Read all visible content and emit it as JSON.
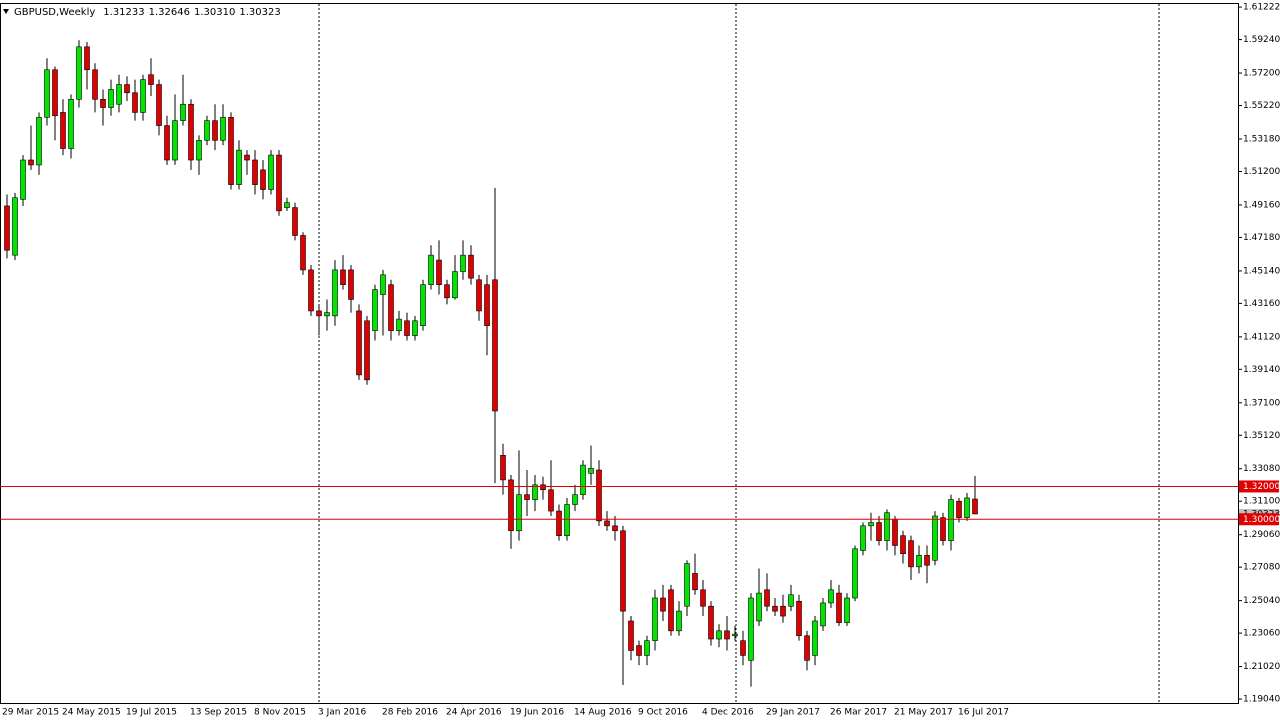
{
  "chart_data": {
    "type": "candlestick",
    "title": "GBPUSD,Weekly",
    "header_values": [
      "1.31233",
      "1.32646",
      "1.30310",
      "1.30323"
    ],
    "up_color": "#00e600",
    "down_color": "#e00000",
    "ylim": [
      1.188,
      1.6141
    ],
    "yticks": [
      {
        "value": 1.61222,
        "label": "1.61222"
      },
      {
        "value": 1.5924,
        "label": "1.59240"
      },
      {
        "value": 1.572,
        "label": "1.57200"
      },
      {
        "value": 1.5522,
        "label": "1.55220"
      },
      {
        "value": 1.5318,
        "label": "1.53180"
      },
      {
        "value": 1.512,
        "label": "1.51200"
      },
      {
        "value": 1.4916,
        "label": "1.49160"
      },
      {
        "value": 1.4718,
        "label": "1.47180"
      },
      {
        "value": 1.4514,
        "label": "1.45140"
      },
      {
        "value": 1.4316,
        "label": "1.43160"
      },
      {
        "value": 1.4112,
        "label": "1.41120"
      },
      {
        "value": 1.3914,
        "label": "1.39140"
      },
      {
        "value": 1.371,
        "label": "1.37100"
      },
      {
        "value": 1.3512,
        "label": "1.35120"
      },
      {
        "value": 1.3308,
        "label": "1.33080"
      },
      {
        "value": 1.311,
        "label": "1.31100"
      },
      {
        "value": 1.2906,
        "label": "1.29060"
      },
      {
        "value": 1.2708,
        "label": "1.27080"
      },
      {
        "value": 1.2504,
        "label": "1.25040"
      },
      {
        "value": 1.2306,
        "label": "1.23060"
      },
      {
        "value": 1.2102,
        "label": "1.21020"
      },
      {
        "value": 1.1904,
        "label": "1.19040"
      }
    ],
    "hlines": [
      {
        "value": 1.32,
        "label": "1.32000"
      },
      {
        "value": 1.3,
        "label": "1.30000"
      }
    ],
    "hline_color": "#e00000",
    "last_price": {
      "value": 1.30323,
      "label": "1.30323"
    },
    "categories": [
      "29 Mar 2015",
      null,
      null,
      null,
      null,
      null,
      null,
      "24 May 2015",
      null,
      null,
      null,
      null,
      null,
      null,
      null,
      "19 Jul 2015",
      null,
      null,
      null,
      null,
      null,
      null,
      null,
      "13 Sep 2015",
      null,
      null,
      null,
      null,
      null,
      null,
      null,
      "8 Nov 2015",
      null,
      null,
      null,
      null,
      null,
      null,
      null,
      "3 Jan 2016",
      null,
      null,
      null,
      null,
      null,
      null,
      null,
      "28 Feb 2016",
      null,
      null,
      null,
      null,
      null,
      null,
      null,
      "24 Apr 2016",
      null,
      null,
      null,
      null,
      null,
      null,
      null,
      "19 Jun 2016",
      null,
      null,
      null,
      null,
      null,
      null,
      null,
      "14 Aug 2016",
      null,
      null,
      null,
      null,
      null,
      null,
      null,
      "9 Oct 2016",
      null,
      null,
      null,
      null,
      null,
      null,
      null,
      "4 Dec 2016",
      null,
      null,
      null,
      null,
      null,
      null,
      null,
      "29 Jan 2017",
      null,
      null,
      null,
      null,
      null,
      null,
      null,
      "26 Mar 2017",
      null,
      null,
      null,
      null,
      null,
      null,
      null,
      "21 May 2017",
      null,
      null,
      null,
      null,
      null,
      null,
      null,
      "16 Jul 2017",
      null,
      null
    ],
    "candles": [
      [
        1.491,
        1.498,
        1.459,
        1.464
      ],
      [
        1.461,
        1.499,
        1.458,
        1.496
      ],
      [
        1.495,
        1.522,
        1.491,
        1.519
      ],
      [
        1.519,
        1.54,
        1.513,
        1.516
      ],
      [
        1.516,
        1.548,
        1.51,
        1.545
      ],
      [
        1.545,
        1.581,
        1.54,
        1.574
      ],
      [
        1.574,
        1.576,
        1.531,
        1.546
      ],
      [
        1.548,
        1.556,
        1.522,
        1.526
      ],
      [
        1.526,
        1.559,
        1.52,
        1.556
      ],
      [
        1.556,
        1.592,
        1.551,
        1.588
      ],
      [
        1.588,
        1.591,
        1.562,
        1.574
      ],
      [
        1.574,
        1.578,
        1.548,
        1.556
      ],
      [
        1.556,
        1.562,
        1.54,
        1.551
      ],
      [
        1.551,
        1.568,
        1.546,
        1.562
      ],
      [
        1.553,
        1.571,
        1.548,
        1.565
      ],
      [
        1.565,
        1.57,
        1.555,
        1.56
      ],
      [
        1.56,
        1.568,
        1.543,
        1.548
      ],
      [
        1.548,
        1.571,
        1.543,
        1.568
      ],
      [
        1.571,
        1.581,
        1.558,
        1.565
      ],
      [
        1.565,
        1.568,
        1.534,
        1.54
      ],
      [
        1.54,
        1.546,
        1.516,
        1.519
      ],
      [
        1.519,
        1.559,
        1.516,
        1.543
      ],
      [
        1.543,
        1.571,
        1.54,
        1.553
      ],
      [
        1.553,
        1.556,
        1.513,
        1.519
      ],
      [
        1.519,
        1.534,
        1.51,
        1.531
      ],
      [
        1.531,
        1.546,
        1.528,
        1.543
      ],
      [
        1.543,
        1.553,
        1.525,
        1.531
      ],
      [
        1.531,
        1.553,
        1.528,
        1.545
      ],
      [
        1.545,
        1.548,
        1.501,
        1.504
      ],
      [
        1.504,
        1.531,
        1.501,
        1.525
      ],
      [
        1.522,
        1.525,
        1.51,
        1.519
      ],
      [
        1.519,
        1.525,
        1.498,
        1.504
      ],
      [
        1.513,
        1.519,
        1.495,
        1.501
      ],
      [
        1.501,
        1.525,
        1.498,
        1.522
      ],
      [
        1.522,
        1.525,
        1.485,
        1.488
      ],
      [
        1.49,
        1.496,
        1.488,
        1.493
      ],
      [
        1.49,
        1.493,
        1.47,
        1.473
      ],
      [
        1.473,
        1.475,
        1.449,
        1.452
      ],
      [
        1.452,
        1.455,
        1.424,
        1.427
      ],
      [
        1.427,
        1.431,
        1.412,
        1.424
      ],
      [
        1.424,
        1.434,
        1.415,
        1.426
      ],
      [
        1.424,
        1.458,
        1.418,
        1.452
      ],
      [
        1.452,
        1.461,
        1.44,
        1.443
      ],
      [
        1.452,
        1.455,
        1.426,
        1.434
      ],
      [
        1.427,
        1.431,
        1.385,
        1.388
      ],
      [
        1.421,
        1.424,
        1.382,
        1.385
      ],
      [
        1.415,
        1.443,
        1.409,
        1.44
      ],
      [
        1.437,
        1.452,
        1.412,
        1.449
      ],
      [
        1.443,
        1.446,
        1.409,
        1.415
      ],
      [
        1.415,
        1.427,
        1.412,
        1.422
      ],
      [
        1.421,
        1.426,
        1.409,
        1.412
      ],
      [
        1.412,
        1.424,
        1.409,
        1.421
      ],
      [
        1.418,
        1.446,
        1.415,
        1.443
      ],
      [
        1.443,
        1.467,
        1.44,
        1.461
      ],
      [
        1.458,
        1.47,
        1.437,
        1.443
      ],
      [
        1.443,
        1.446,
        1.431,
        1.435
      ],
      [
        1.435,
        1.461,
        1.434,
        1.451
      ],
      [
        1.451,
        1.47,
        1.446,
        1.461
      ],
      [
        1.461,
        1.467,
        1.443,
        1.447
      ],
      [
        1.446,
        1.449,
        1.421,
        1.427
      ],
      [
        1.443,
        1.449,
        1.4,
        1.418
      ],
      [
        1.446,
        1.502,
        1.322,
        1.366
      ],
      [
        1.339,
        1.346,
        1.315,
        1.324
      ],
      [
        1.324,
        1.327,
        1.282,
        1.293
      ],
      [
        1.293,
        1.342,
        1.287,
        1.315
      ],
      [
        1.315,
        1.33,
        1.302,
        1.312
      ],
      [
        1.312,
        1.327,
        1.305,
        1.321
      ],
      [
        1.321,
        1.326,
        1.312,
        1.318
      ],
      [
        1.318,
        1.336,
        1.302,
        1.305
      ],
      [
        1.305,
        1.309,
        1.287,
        1.29
      ],
      [
        1.29,
        1.313,
        1.287,
        1.309
      ],
      [
        1.309,
        1.321,
        1.305,
        1.315
      ],
      [
        1.315,
        1.336,
        1.312,
        1.333
      ],
      [
        1.328,
        1.345,
        1.321,
        1.331
      ],
      [
        1.33,
        1.336,
        1.296,
        1.299
      ],
      [
        1.299,
        1.305,
        1.293,
        1.296
      ],
      [
        1.296,
        1.302,
        1.287,
        1.293
      ],
      [
        1.293,
        1.296,
        1.199,
        1.244
      ],
      [
        1.238,
        1.241,
        1.214,
        1.22
      ],
      [
        1.223,
        1.226,
        1.211,
        1.217
      ],
      [
        1.217,
        1.229,
        1.211,
        1.226
      ],
      [
        1.226,
        1.257,
        1.22,
        1.252
      ],
      [
        1.252,
        1.26,
        1.238,
        1.244
      ],
      [
        1.257,
        1.26,
        1.229,
        1.232
      ],
      [
        1.232,
        1.25,
        1.229,
        1.244
      ],
      [
        1.247,
        1.275,
        1.241,
        1.273
      ],
      [
        1.267,
        1.279,
        1.254,
        1.257
      ],
      [
        1.257,
        1.263,
        1.241,
        1.247
      ],
      [
        1.247,
        1.25,
        1.223,
        1.227
      ],
      [
        1.227,
        1.236,
        1.222,
        1.232
      ],
      [
        1.232,
        1.241,
        1.22,
        1.227
      ],
      [
        1.229,
        1.235,
        1.226,
        1.23
      ],
      [
        1.226,
        1.232,
        1.211,
        1.217
      ],
      [
        1.214,
        1.255,
        1.198,
        1.252
      ],
      [
        1.238,
        1.27,
        1.235,
        1.255
      ],
      [
        1.257,
        1.267,
        1.244,
        1.247
      ],
      [
        1.247,
        1.252,
        1.241,
        1.244
      ],
      [
        1.247,
        1.254,
        1.237,
        1.241
      ],
      [
        1.247,
        1.26,
        1.244,
        1.254
      ],
      [
        1.25,
        1.254,
        1.226,
        1.229
      ],
      [
        1.229,
        1.232,
        1.208,
        1.214
      ],
      [
        1.217,
        1.241,
        1.211,
        1.238
      ],
      [
        1.235,
        1.252,
        1.232,
        1.249
      ],
      [
        1.249,
        1.263,
        1.246,
        1.257
      ],
      [
        1.255,
        1.26,
        1.235,
        1.237
      ],
      [
        1.237,
        1.255,
        1.235,
        1.252
      ],
      [
        1.252,
        1.284,
        1.25,
        1.282
      ],
      [
        1.281,
        1.298,
        1.278,
        1.296
      ],
      [
        1.296,
        1.304,
        1.287,
        1.298
      ],
      [
        1.298,
        1.302,
        1.284,
        1.287
      ],
      [
        1.287,
        1.306,
        1.281,
        1.304
      ],
      [
        1.3,
        1.302,
        1.278,
        1.284
      ],
      [
        1.29,
        1.293,
        1.273,
        1.279
      ],
      [
        1.287,
        1.29,
        1.263,
        1.271
      ],
      [
        1.271,
        1.284,
        1.267,
        1.278
      ],
      [
        1.278,
        1.284,
        1.261,
        1.272
      ],
      [
        1.275,
        1.305,
        1.272,
        1.302
      ],
      [
        1.301,
        1.304,
        1.284,
        1.287
      ],
      [
        1.287,
        1.315,
        1.281,
        1.312
      ],
      [
        1.311,
        1.313,
        1.298,
        1.301
      ],
      [
        1.301,
        1.316,
        1.299,
        1.313
      ],
      [
        1.31233,
        1.32646,
        1.3031,
        1.30323
      ]
    ]
  }
}
